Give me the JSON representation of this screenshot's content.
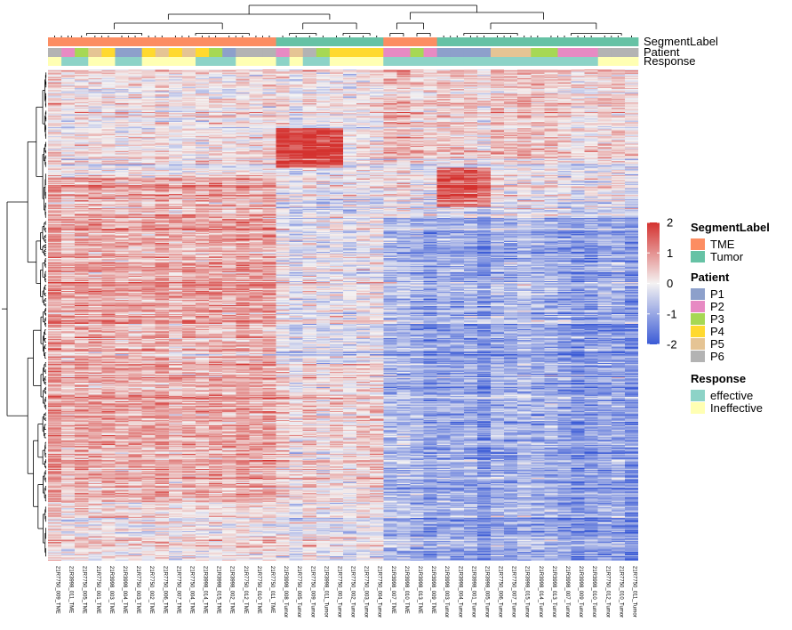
{
  "chart_data": {
    "type": "heatmap",
    "title": "",
    "columns": [
      "21R7750_009_TME",
      "21R3998_011_TME",
      "21R7750_005_TME",
      "21R7750_001_TME",
      "21R3998_003_TME",
      "21R3998_004_TME",
      "21R7750_003_TME",
      "21R7750_002_TME",
      "21R7750_006_TME",
      "21R7750_007_TME",
      "21R7750_004_TME",
      "21R3998_014_TME",
      "21R3998_015_TME",
      "21R3998_002_TME",
      "21R7750_012_TME",
      "21R7750_010_TME",
      "21R7750_011_TME",
      "21R3998_008_Tumor",
      "21R7750_005_Tumor",
      "21R7750_009_Tumor",
      "21R3998_011_Tumor",
      "21R7750_001_Tumor",
      "21R7750_002_Tumor",
      "21R7750_003_Tumor",
      "21R7750_004_Tumor",
      "21R3998_007_TME",
      "21R3998_010_TME",
      "21R3998_013_TME",
      "21R3998_009_TME",
      "21R3998_003_Tumor",
      "21R3998_004_Tumor",
      "21R3998_001_Tumor",
      "21R3998_005_Tumor",
      "21R7750_006_Tumor",
      "21R7750_007_Tumor",
      "21R3998_015_Tumor",
      "21R3998_014_Tumor",
      "21R3998_013_Tumor",
      "21R3998_007_Tumor",
      "21R3998_009_Tumor",
      "21R3998_010_Tumor",
      "21R7750_012_Tumor",
      "21R7750_010_Tumor",
      "21R7750_011_Tumor"
    ],
    "column_clusters": [
      17,
      8,
      4,
      15
    ],
    "n_rows_approx": 450,
    "value_range": [
      -2,
      2
    ],
    "color_scale": {
      "low": "#3b5bd6",
      "mid": "#f4f2f2",
      "high": "#d4322f"
    },
    "annotation_rows": [
      {
        "name": "SegmentLabel",
        "values": [
          "TME",
          "TME",
          "TME",
          "TME",
          "TME",
          "TME",
          "TME",
          "TME",
          "TME",
          "TME",
          "TME",
          "TME",
          "TME",
          "TME",
          "TME",
          "TME",
          "TME",
          "Tumor",
          "Tumor",
          "Tumor",
          "Tumor",
          "Tumor",
          "Tumor",
          "Tumor",
          "Tumor",
          "TME",
          "TME",
          "TME",
          "TME",
          "Tumor",
          "Tumor",
          "Tumor",
          "Tumor",
          "Tumor",
          "Tumor",
          "Tumor",
          "Tumor",
          "Tumor",
          "Tumor",
          "Tumor",
          "Tumor",
          "Tumor",
          "Tumor",
          "Tumor"
        ]
      },
      {
        "name": "Patient",
        "values": [
          "P6",
          "P2",
          "P3",
          "P5",
          "P4",
          "P1",
          "P1",
          "P4",
          "P5",
          "P4",
          "P5",
          "P4",
          "P3",
          "P1",
          "P6",
          "P6",
          "P6",
          "P2",
          "P5",
          "P6",
          "P3",
          "P4",
          "P4",
          "P4",
          "P4",
          "P2",
          "P2",
          "P3",
          "P2",
          "P1",
          "P1",
          "P1",
          "P1",
          "P5",
          "P5",
          "P5",
          "P3",
          "P3",
          "P2",
          "P2",
          "P2",
          "P6",
          "P6",
          "P6"
        ]
      },
      {
        "name": "Response",
        "values": [
          "Ineffective",
          "effective",
          "effective",
          "Ineffective",
          "Ineffective",
          "effective",
          "effective",
          "Ineffective",
          "Ineffective",
          "Ineffective",
          "Ineffective",
          "effective",
          "effective",
          "effective",
          "Ineffective",
          "Ineffective",
          "Ineffective",
          "effective",
          "Ineffective",
          "effective",
          "effective",
          "Ineffective",
          "Ineffective",
          "Ineffective",
          "Ineffective",
          "effective",
          "effective",
          "effective",
          "effective",
          "effective",
          "effective",
          "effective",
          "effective",
          "effective",
          "effective",
          "effective",
          "effective",
          "effective",
          "effective",
          "effective",
          "effective",
          "Ineffective",
          "Ineffective",
          "Ineffective"
        ]
      }
    ],
    "block_pattern": [
      {
        "cols": [
          0,
          16
        ],
        "rows": [
          0.0,
          0.22
        ],
        "mean": 0.1
      },
      {
        "cols": [
          0,
          16
        ],
        "rows": [
          0.22,
          0.88
        ],
        "mean": 0.75
      },
      {
        "cols": [
          0,
          16
        ],
        "rows": [
          0.88,
          1.0
        ],
        "mean": 0.2
      },
      {
        "cols": [
          17,
          21
        ],
        "rows": [
          0.12,
          0.2
        ],
        "mean": 1.8
      },
      {
        "cols": [
          17,
          24
        ],
        "rows": [
          0.2,
          0.6
        ],
        "mean": -0.1
      },
      {
        "cols": [
          17,
          24
        ],
        "rows": [
          0.6,
          0.88
        ],
        "mean": 0.3
      },
      {
        "cols": [
          25,
          43
        ],
        "rows": [
          0.0,
          0.18
        ],
        "mean": 0.4
      },
      {
        "cols": [
          29,
          32
        ],
        "rows": [
          0.2,
          0.28
        ],
        "mean": 1.6
      },
      {
        "cols": [
          25,
          43
        ],
        "rows": [
          0.3,
          1.0
        ],
        "mean": -0.9
      }
    ],
    "legends": {
      "color_ticks": [
        "2",
        "1",
        "0",
        "-1",
        "-2"
      ],
      "SegmentLabel": {
        "title": "SegmentLabel",
        "items": [
          {
            "label": "TME",
            "color": "#fc8d62"
          },
          {
            "label": "Tumor",
            "color": "#66c2a5"
          }
        ]
      },
      "Patient": {
        "title": "Patient",
        "items": [
          {
            "label": "P1",
            "color": "#8da0cb"
          },
          {
            "label": "P2",
            "color": "#e78ac3"
          },
          {
            "label": "P3",
            "color": "#a6d854"
          },
          {
            "label": "P4",
            "color": "#ffd92f"
          },
          {
            "label": "P5",
            "color": "#e5c494"
          },
          {
            "label": "P6",
            "color": "#b3b3b3"
          }
        ]
      },
      "Response": {
        "title": "Response",
        "items": [
          {
            "label": "effective",
            "color": "#8dd3c7"
          },
          {
            "label": "Ineffective",
            "color": "#ffffb3"
          }
        ]
      }
    }
  }
}
